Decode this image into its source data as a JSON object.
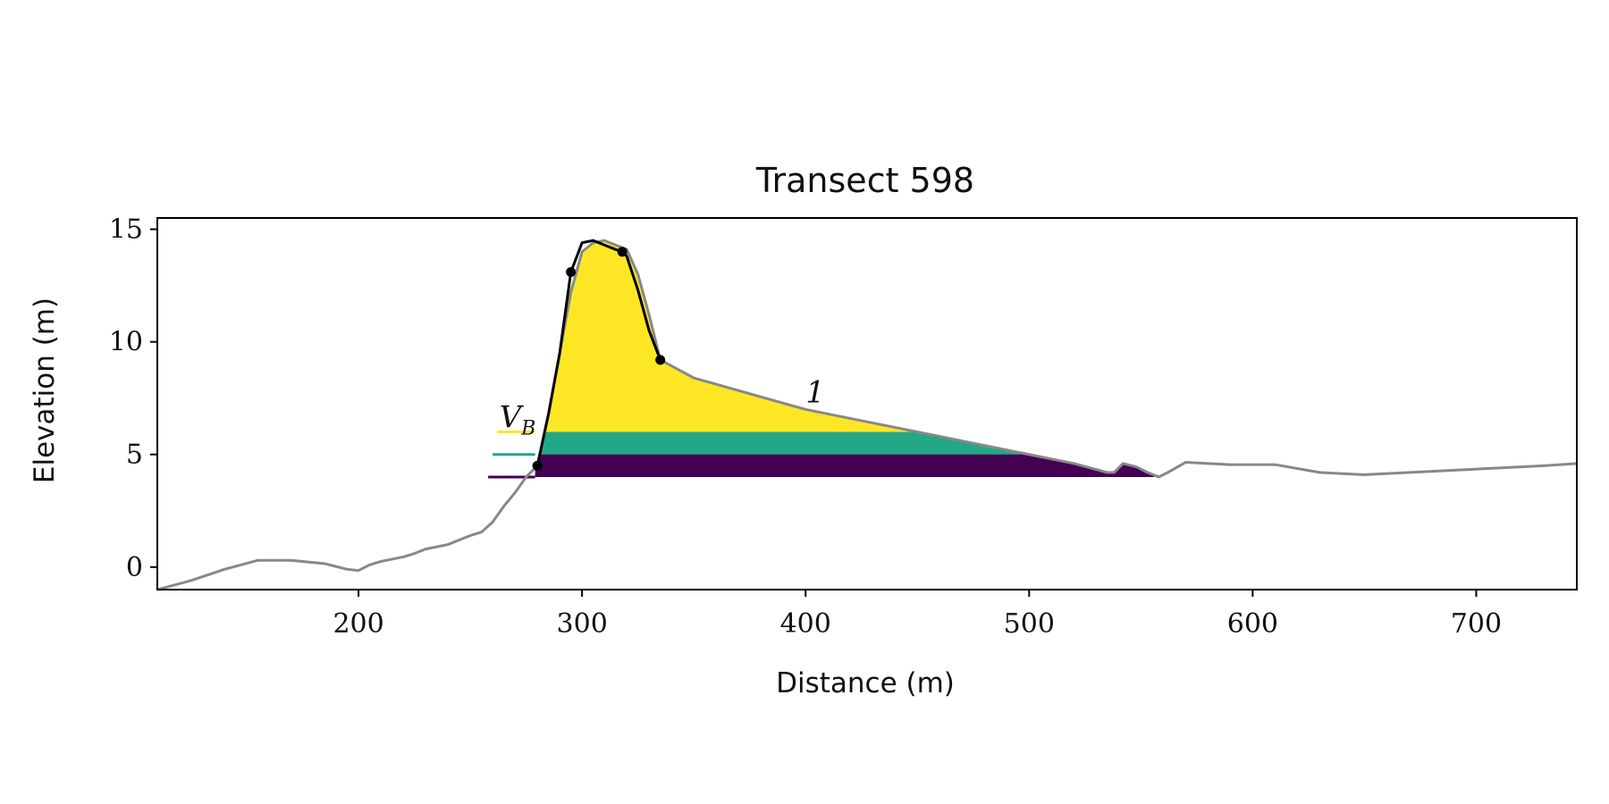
{
  "chart_data": {
    "type": "area",
    "title": "Transect 598",
    "xlabel": "Distance (m)",
    "ylabel": "Elevation (m)",
    "xlim": [
      110,
      745
    ],
    "ylim": [
      -1,
      15.5
    ],
    "xticks": [
      200,
      300,
      400,
      500,
      600,
      700
    ],
    "yticks": [
      0,
      5,
      10,
      15
    ],
    "grid": false,
    "legend": "none",
    "profile": {
      "color": "#888888",
      "x": [
        110,
        125,
        140,
        155,
        170,
        185,
        195,
        200,
        205,
        210,
        215,
        220,
        225,
        230,
        235,
        240,
        245,
        250,
        255,
        260,
        265,
        270,
        275,
        280,
        285,
        290,
        295,
        300,
        305,
        310,
        315,
        320,
        325,
        330,
        335,
        350,
        400,
        450,
        500,
        520,
        535,
        538,
        542,
        548,
        553,
        558,
        562,
        570,
        590,
        610,
        630,
        650,
        670,
        690,
        710,
        730,
        745
      ],
      "y": [
        -1.0,
        -0.6,
        -0.1,
        0.3,
        0.3,
        0.15,
        -0.1,
        -0.15,
        0.1,
        0.25,
        0.35,
        0.45,
        0.6,
        0.8,
        0.9,
        1.0,
        1.2,
        1.4,
        1.55,
        2.0,
        2.7,
        3.3,
        4.0,
        4.5,
        6.8,
        9.5,
        12.2,
        14.0,
        14.4,
        14.5,
        14.3,
        14.1,
        13.0,
        11.2,
        9.2,
        8.4,
        7.0,
        6.0,
        5.0,
        4.6,
        4.2,
        4.2,
        4.6,
        4.45,
        4.2,
        4.0,
        4.2,
        4.65,
        4.55,
        4.55,
        4.2,
        4.1,
        4.2,
        4.3,
        4.4,
        4.5,
        4.6
      ]
    },
    "dune": {
      "color": "#000000",
      "x": [
        280,
        285,
        290,
        295,
        300,
        305,
        310,
        315,
        318,
        320,
        325,
        330,
        335
      ],
      "y": [
        4.5,
        6.8,
        9.5,
        13.1,
        14.4,
        14.5,
        14.3,
        14.1,
        14.0,
        13.8,
        12.3,
        10.5,
        9.2
      ]
    },
    "key_points": [
      {
        "x": 280,
        "y": 4.5
      },
      {
        "x": 295,
        "y": 13.1
      },
      {
        "x": 318,
        "y": 14.0
      },
      {
        "x": 335,
        "y": 9.2
      }
    ],
    "volume_layers": [
      {
        "color": "#fde725",
        "base": 6.0,
        "x_start": 262,
        "x_end": 455
      },
      {
        "color": "#22a884",
        "base": 5.0,
        "x_start": 260,
        "x_end": 510
      },
      {
        "color": "#440154",
        "base": 4.0,
        "x_start": 258,
        "x_end": 556
      }
    ],
    "annotations": [
      {
        "text": "V",
        "sub": "B",
        "x": 263,
        "y": 6.2
      },
      {
        "text": "1",
        "x": 400,
        "y": 7.3
      }
    ]
  }
}
